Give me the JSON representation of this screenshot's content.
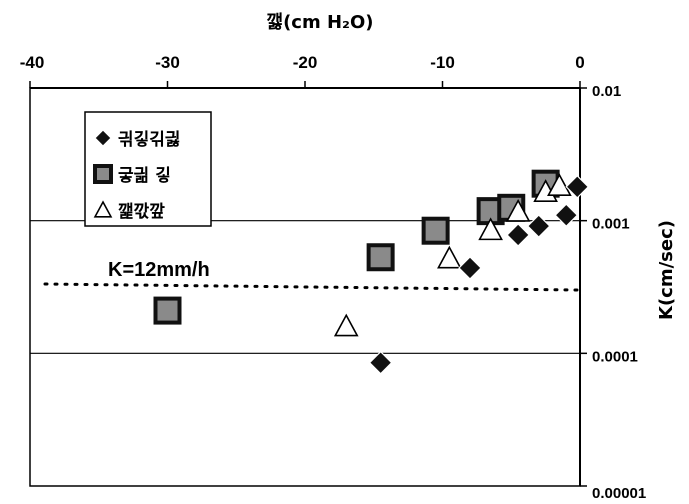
{
  "chart_data": {
    "type": "scatter",
    "xlabel": "깷(cm H₂O)",
    "ylabel": "K(cm/sec)",
    "x_axis_position": "top",
    "y_axis_position": "right",
    "xlim": [
      -40,
      0
    ],
    "ylim": [
      1e-05,
      0.01
    ],
    "y_scale": "log",
    "x_ticks": [
      "-40",
      "-30",
      "-20",
      "-10",
      "0"
    ],
    "x_tick_values": [
      -40,
      -30,
      -20,
      -10,
      0
    ],
    "y_ticks": [
      "0.01",
      "0.001",
      "0.0001",
      "0.00001"
    ],
    "y_tick_values": [
      0.01,
      0.001,
      0.0001,
      1e-05
    ],
    "grid": "horizontal",
    "legend_position": "top-left",
    "series": [
      {
        "name": "긖깋긲긣",
        "marker": "diamond",
        "points": [
          {
            "x": -14.5,
            "y": 8.5e-05
          },
          {
            "x": -8,
            "y": 0.00044
          },
          {
            "x": -4.5,
            "y": 0.00078
          },
          {
            "x": -3,
            "y": 0.00091
          },
          {
            "x": -1,
            "y": 0.0011
          },
          {
            "x": -0.2,
            "y": 0.0018
          }
        ]
      },
      {
        "name": "긓긞 깋",
        "marker": "square",
        "points": [
          {
            "x": -30,
            "y": 0.00021
          },
          {
            "x": -14.5,
            "y": 0.00053
          },
          {
            "x": -10.5,
            "y": 0.00084
          },
          {
            "x": -6.5,
            "y": 0.00118
          },
          {
            "x": -5,
            "y": 0.00125
          },
          {
            "x": -2.5,
            "y": 0.0019
          }
        ]
      },
      {
        "name": "깵깏깦",
        "marker": "triangle",
        "points": [
          {
            "x": -17,
            "y": 0.00016
          },
          {
            "x": -9.5,
            "y": 0.00052
          },
          {
            "x": -6.5,
            "y": 0.00085
          },
          {
            "x": -4.5,
            "y": 0.00117
          },
          {
            "x": -2.5,
            "y": 0.00165
          },
          {
            "x": -1.5,
            "y": 0.00183
          }
        ]
      }
    ],
    "annotations": [
      {
        "text": "K=12mm/h",
        "y": 0.000333,
        "line_style": "dotted"
      }
    ]
  }
}
